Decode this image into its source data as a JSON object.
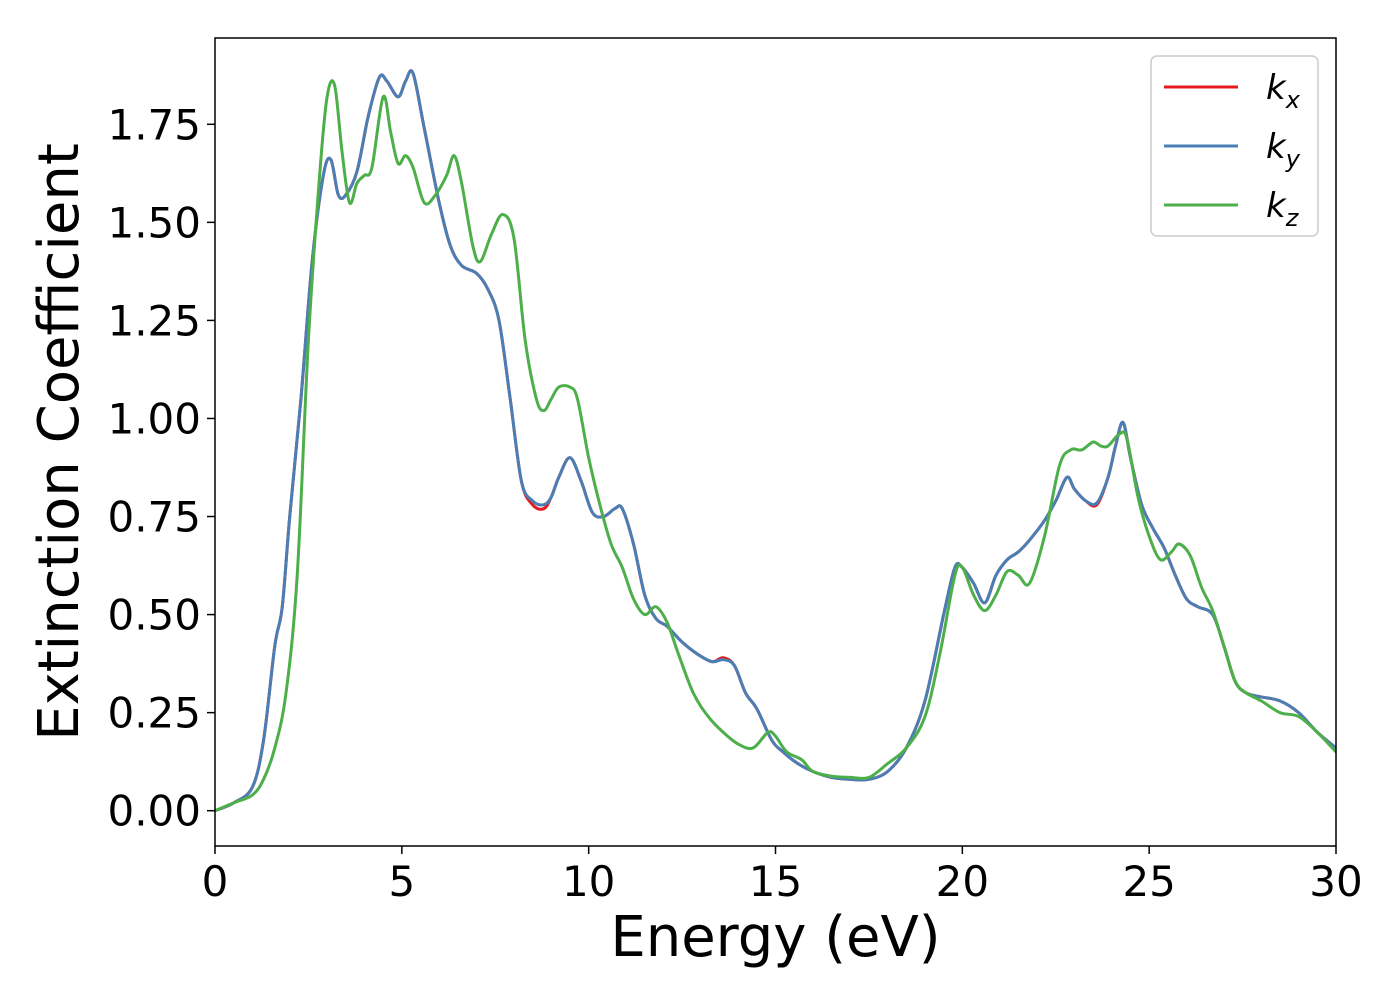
{
  "chart_data": {
    "type": "line",
    "title": "",
    "xlabel": "Energy (eV)",
    "ylabel": "Extinction Coefficient",
    "xlim": [
      0,
      30
    ],
    "ylim": [
      -0.09,
      1.97
    ],
    "xticks": [
      0,
      5,
      10,
      15,
      20,
      25,
      30
    ],
    "xtick_labels": [
      "0",
      "5",
      "10",
      "15",
      "20",
      "25",
      "30"
    ],
    "yticks": [
      0.0,
      0.25,
      0.5,
      0.75,
      1.0,
      1.25,
      1.5,
      1.75
    ],
    "ytick_labels": [
      "0.00",
      "0.25",
      "0.50",
      "0.75",
      "1.00",
      "1.25",
      "1.50",
      "1.75"
    ],
    "grid": false,
    "legend_position": "top-right",
    "series": [
      {
        "name": "k",
        "subscript": "x",
        "color": "#e41a1c",
        "x": [
          0,
          0.5,
          1.0,
          1.3,
          1.6,
          1.8,
          2.0,
          2.3,
          2.6,
          2.9,
          3.1,
          3.3,
          3.5,
          3.8,
          4.1,
          4.4,
          4.6,
          4.9,
          5.1,
          5.3,
          5.6,
          6.0,
          6.3,
          6.6,
          7.0,
          7.3,
          7.6,
          7.9,
          8.2,
          8.5,
          8.8,
          9.0,
          9.2,
          9.5,
          9.8,
          10.1,
          10.4,
          10.7,
          10.9,
          11.2,
          11.5,
          11.8,
          12.1,
          12.5,
          12.9,
          13.3,
          13.6,
          13.9,
          14.2,
          14.5,
          14.9,
          15.2,
          15.6,
          16.0,
          16.5,
          17.0,
          17.5,
          18.0,
          18.5,
          19.0,
          19.5,
          19.8,
          20.0,
          20.3,
          20.6,
          20.9,
          21.2,
          21.5,
          21.8,
          22.2,
          22.5,
          22.8,
          23.0,
          23.3,
          23.6,
          23.9,
          24.1,
          24.3,
          24.5,
          24.8,
          25.1,
          25.4,
          25.7,
          26.0,
          26.3,
          26.7,
          27.0,
          27.3,
          27.6,
          28.0,
          28.5,
          29.0,
          29.5,
          30.0
        ],
        "y": [
          0.0,
          0.02,
          0.06,
          0.18,
          0.42,
          0.52,
          0.75,
          1.05,
          1.4,
          1.62,
          1.66,
          1.57,
          1.57,
          1.63,
          1.77,
          1.87,
          1.86,
          1.82,
          1.86,
          1.88,
          1.74,
          1.55,
          1.44,
          1.39,
          1.37,
          1.33,
          1.25,
          1.05,
          0.84,
          0.78,
          0.77,
          0.8,
          0.85,
          0.9,
          0.84,
          0.76,
          0.75,
          0.77,
          0.77,
          0.68,
          0.55,
          0.49,
          0.47,
          0.43,
          0.4,
          0.38,
          0.39,
          0.37,
          0.3,
          0.26,
          0.18,
          0.15,
          0.12,
          0.1,
          0.085,
          0.08,
          0.08,
          0.1,
          0.16,
          0.28,
          0.5,
          0.62,
          0.62,
          0.58,
          0.53,
          0.6,
          0.64,
          0.66,
          0.69,
          0.74,
          0.79,
          0.85,
          0.82,
          0.79,
          0.78,
          0.85,
          0.93,
          0.99,
          0.9,
          0.78,
          0.72,
          0.67,
          0.6,
          0.54,
          0.52,
          0.5,
          0.42,
          0.33,
          0.3,
          0.29,
          0.28,
          0.25,
          0.2,
          0.16
        ]
      },
      {
        "name": "k",
        "subscript": "y",
        "color": "#4a7fb5",
        "x": [
          0,
          0.5,
          1.0,
          1.3,
          1.6,
          1.8,
          2.0,
          2.3,
          2.6,
          2.9,
          3.1,
          3.3,
          3.5,
          3.8,
          4.1,
          4.4,
          4.6,
          4.9,
          5.1,
          5.3,
          5.6,
          6.0,
          6.3,
          6.6,
          7.0,
          7.3,
          7.6,
          7.9,
          8.2,
          8.5,
          8.8,
          9.0,
          9.2,
          9.5,
          9.8,
          10.1,
          10.4,
          10.7,
          10.9,
          11.2,
          11.5,
          11.8,
          12.1,
          12.5,
          12.9,
          13.3,
          13.6,
          13.9,
          14.2,
          14.5,
          14.9,
          15.2,
          15.6,
          16.0,
          16.5,
          17.0,
          17.5,
          18.0,
          18.5,
          19.0,
          19.5,
          19.8,
          20.0,
          20.3,
          20.6,
          20.9,
          21.2,
          21.5,
          21.8,
          22.2,
          22.5,
          22.8,
          23.0,
          23.3,
          23.6,
          23.9,
          24.1,
          24.3,
          24.5,
          24.8,
          25.1,
          25.4,
          25.7,
          26.0,
          26.3,
          26.7,
          27.0,
          27.3,
          27.6,
          28.0,
          28.5,
          29.0,
          29.5,
          30.0
        ],
        "y": [
          0.0,
          0.02,
          0.06,
          0.18,
          0.42,
          0.52,
          0.75,
          1.05,
          1.4,
          1.62,
          1.66,
          1.57,
          1.57,
          1.63,
          1.77,
          1.87,
          1.86,
          1.82,
          1.86,
          1.88,
          1.74,
          1.55,
          1.44,
          1.39,
          1.37,
          1.33,
          1.25,
          1.05,
          0.84,
          0.79,
          0.78,
          0.8,
          0.85,
          0.9,
          0.84,
          0.76,
          0.75,
          0.77,
          0.77,
          0.68,
          0.55,
          0.49,
          0.47,
          0.43,
          0.4,
          0.38,
          0.385,
          0.37,
          0.3,
          0.26,
          0.18,
          0.15,
          0.12,
          0.1,
          0.085,
          0.08,
          0.08,
          0.1,
          0.16,
          0.28,
          0.5,
          0.62,
          0.62,
          0.58,
          0.53,
          0.6,
          0.64,
          0.66,
          0.69,
          0.74,
          0.79,
          0.85,
          0.82,
          0.79,
          0.785,
          0.85,
          0.93,
          0.99,
          0.9,
          0.78,
          0.72,
          0.67,
          0.6,
          0.54,
          0.52,
          0.5,
          0.42,
          0.33,
          0.3,
          0.29,
          0.28,
          0.25,
          0.2,
          0.16
        ]
      },
      {
        "name": "k",
        "subscript": "z",
        "color": "#4daf4a",
        "x": [
          0,
          0.5,
          1.0,
          1.3,
          1.6,
          1.9,
          2.2,
          2.5,
          2.8,
          3.0,
          3.2,
          3.4,
          3.6,
          3.8,
          4.0,
          4.2,
          4.5,
          4.7,
          4.9,
          5.1,
          5.3,
          5.6,
          5.9,
          6.2,
          6.4,
          6.6,
          6.9,
          7.1,
          7.4,
          7.7,
          8.0,
          8.3,
          8.6,
          8.8,
          9.0,
          9.2,
          9.5,
          9.7,
          10.0,
          10.3,
          10.6,
          10.9,
          11.2,
          11.5,
          11.8,
          12.1,
          12.4,
          12.8,
          13.2,
          13.6,
          14.0,
          14.4,
          14.8,
          15.0,
          15.3,
          15.7,
          16.0,
          16.5,
          17.0,
          17.5,
          18.0,
          18.5,
          19.0,
          19.4,
          19.8,
          20.0,
          20.3,
          20.6,
          20.9,
          21.2,
          21.5,
          21.8,
          22.2,
          22.6,
          22.9,
          23.2,
          23.5,
          23.7,
          23.9,
          24.2,
          24.4,
          24.7,
          25.0,
          25.3,
          25.6,
          25.8,
          26.1,
          26.4,
          26.7,
          27.0,
          27.3,
          27.6,
          28.0,
          28.5,
          29.0,
          29.5,
          30.0
        ],
        "y": [
          0.0,
          0.02,
          0.04,
          0.08,
          0.16,
          0.3,
          0.6,
          1.2,
          1.62,
          1.82,
          1.85,
          1.68,
          1.55,
          1.6,
          1.62,
          1.64,
          1.82,
          1.73,
          1.65,
          1.67,
          1.64,
          1.55,
          1.57,
          1.62,
          1.67,
          1.6,
          1.44,
          1.4,
          1.47,
          1.52,
          1.46,
          1.2,
          1.05,
          1.02,
          1.05,
          1.08,
          1.08,
          1.05,
          0.9,
          0.78,
          0.68,
          0.62,
          0.54,
          0.5,
          0.52,
          0.48,
          0.4,
          0.3,
          0.24,
          0.2,
          0.17,
          0.16,
          0.2,
          0.19,
          0.15,
          0.13,
          0.1,
          0.088,
          0.085,
          0.085,
          0.12,
          0.16,
          0.24,
          0.4,
          0.6,
          0.62,
          0.55,
          0.51,
          0.55,
          0.61,
          0.6,
          0.58,
          0.7,
          0.88,
          0.92,
          0.92,
          0.94,
          0.93,
          0.93,
          0.96,
          0.95,
          0.8,
          0.7,
          0.64,
          0.66,
          0.68,
          0.65,
          0.57,
          0.51,
          0.42,
          0.33,
          0.3,
          0.28,
          0.25,
          0.24,
          0.2,
          0.15
        ]
      }
    ]
  }
}
